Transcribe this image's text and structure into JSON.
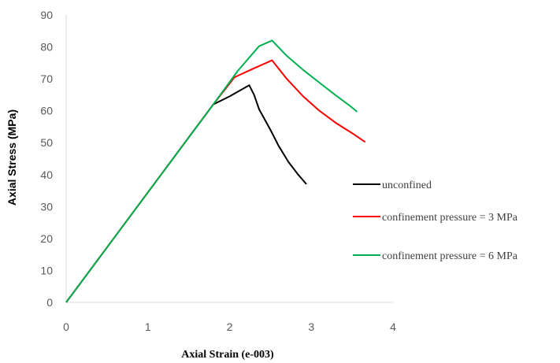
{
  "chart_data": {
    "type": "line",
    "title": "",
    "xlabel": "Axial Strain (e-003)",
    "ylabel": "Axial Stress (MPa)",
    "xlim": [
      0,
      4
    ],
    "ylim": [
      0,
      90
    ],
    "xticks": [
      0,
      1,
      2,
      3,
      4
    ],
    "yticks": [
      0,
      10,
      20,
      30,
      40,
      50,
      60,
      70,
      80,
      90
    ],
    "grid": false,
    "legend_position": "right",
    "series": [
      {
        "name": "unconfined",
        "color": "#000000",
        "points": [
          [
            0,
            0
          ],
          [
            1.8,
            62
          ],
          [
            2.0,
            64.5
          ],
          [
            2.24,
            68
          ],
          [
            2.3,
            65
          ],
          [
            2.36,
            60.5
          ],
          [
            2.5,
            54
          ],
          [
            2.6,
            49
          ],
          [
            2.72,
            44
          ],
          [
            2.84,
            40
          ],
          [
            2.94,
            37
          ]
        ]
      },
      {
        "name": "confinement pressure = 3 MPa",
        "color": "#FF0000",
        "points": [
          [
            0,
            0
          ],
          [
            1.8,
            62
          ],
          [
            2.06,
            70.5
          ],
          [
            2.3,
            73.3
          ],
          [
            2.52,
            75.8
          ],
          [
            2.7,
            70
          ],
          [
            2.9,
            64.5
          ],
          [
            3.1,
            60
          ],
          [
            3.3,
            56.2
          ],
          [
            3.5,
            53
          ],
          [
            3.66,
            50.2
          ]
        ]
      },
      {
        "name": "confinement pressure = 6 MPa",
        "color": "#00B050",
        "points": [
          [
            0,
            0
          ],
          [
            1.8,
            62
          ],
          [
            2.1,
            72.5
          ],
          [
            2.36,
            80.2
          ],
          [
            2.52,
            82
          ],
          [
            2.7,
            77.2
          ],
          [
            2.9,
            72.8
          ],
          [
            3.1,
            68.8
          ],
          [
            3.3,
            64.8
          ],
          [
            3.46,
            61.8
          ],
          [
            3.56,
            59.7
          ]
        ]
      }
    ]
  }
}
